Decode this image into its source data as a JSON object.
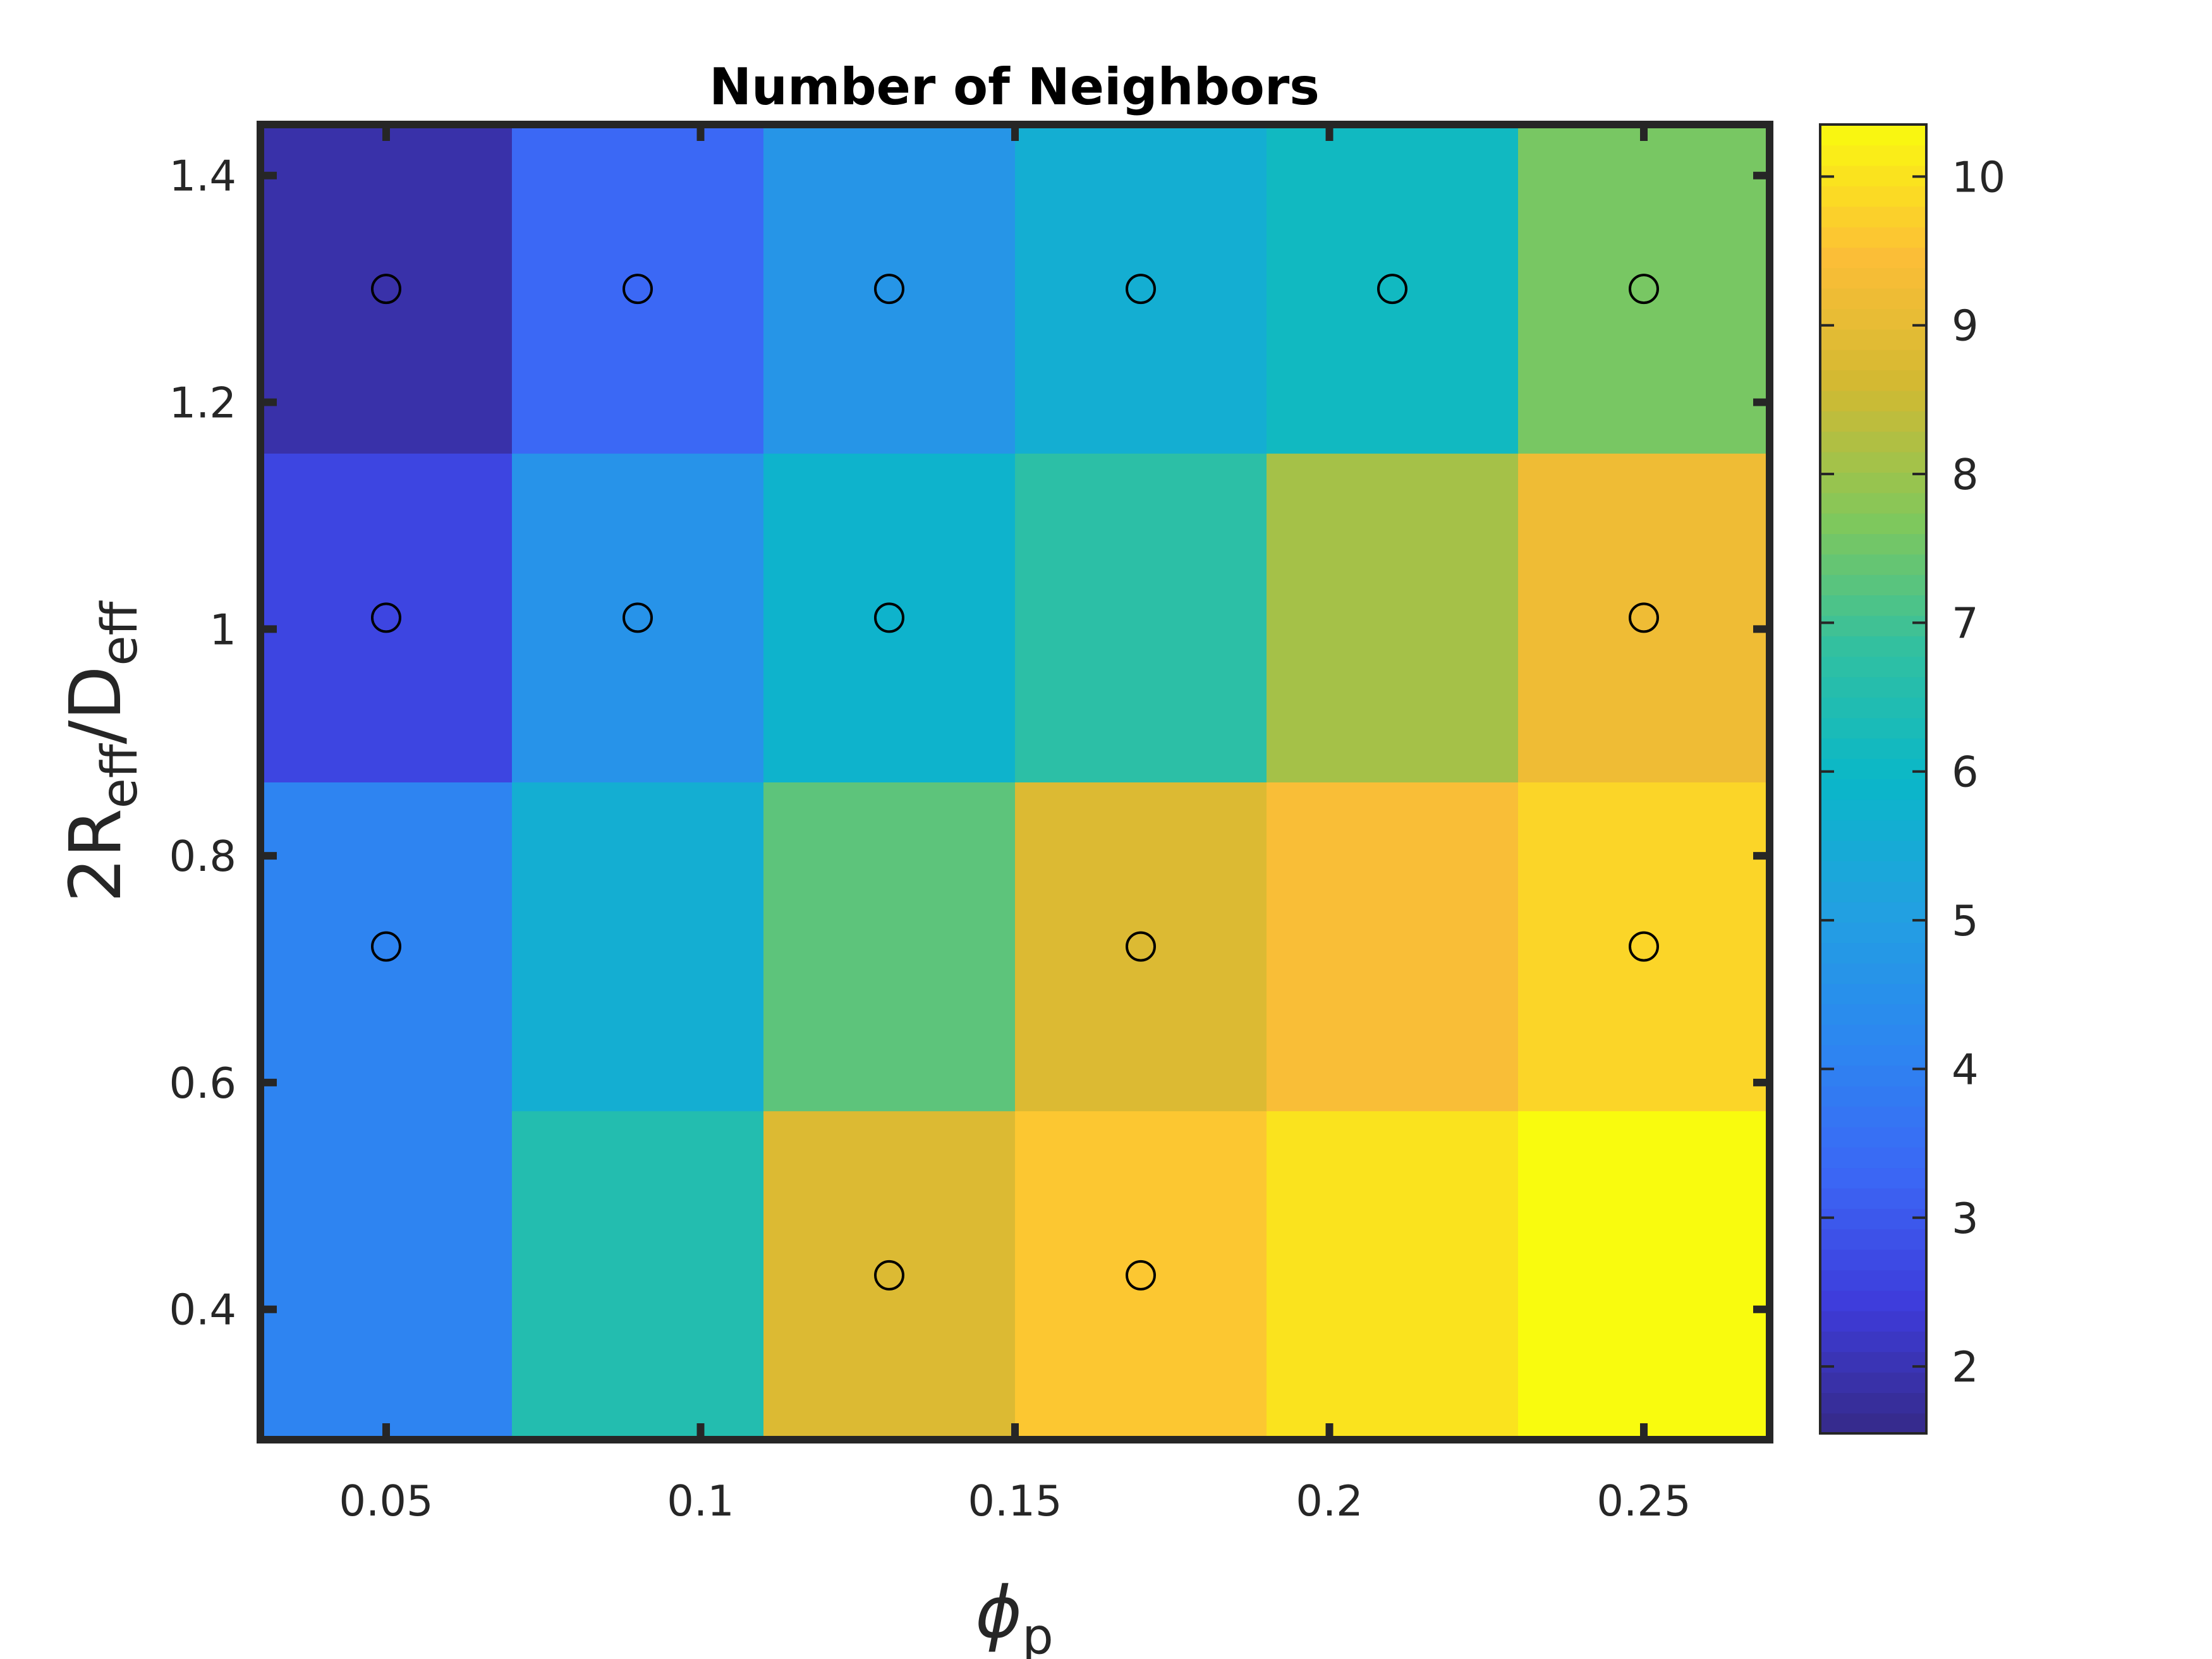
{
  "chart_data": {
    "type": "heatmap",
    "title": "Number of Neighbors",
    "xlabel": {
      "main": "ϕ",
      "sub": "p"
    },
    "ylabel": {
      "main1": "2R",
      "sub1": "eff",
      "main2": "/D",
      "sub2": "eff"
    },
    "x": [
      0.05,
      0.09,
      0.13,
      0.17,
      0.21,
      0.25
    ],
    "y": [
      0.43,
      0.72,
      1.01,
      1.3
    ],
    "values": [
      [
        4.1,
        6.5,
        8.8,
        9.6,
        10.0,
        10.4
      ],
      [
        4.1,
        5.6,
        7.3,
        8.8,
        9.4,
        9.8
      ],
      [
        2.6,
        4.6,
        5.8,
        6.7,
        8.1,
        9.2
      ],
      [
        1.9,
        3.3,
        4.7,
        5.6,
        6.1,
        7.6
      ]
    ],
    "markers": [
      {
        "x": 0.05,
        "y": 1.3
      },
      {
        "x": 0.09,
        "y": 1.3
      },
      {
        "x": 0.13,
        "y": 1.3
      },
      {
        "x": 0.17,
        "y": 1.3
      },
      {
        "x": 0.21,
        "y": 1.3
      },
      {
        "x": 0.25,
        "y": 1.3
      },
      {
        "x": 0.05,
        "y": 1.01
      },
      {
        "x": 0.09,
        "y": 1.01
      },
      {
        "x": 0.13,
        "y": 1.01
      },
      {
        "x": 0.25,
        "y": 1.01
      },
      {
        "x": 0.05,
        "y": 0.72
      },
      {
        "x": 0.17,
        "y": 0.72
      },
      {
        "x": 0.25,
        "y": 0.72
      },
      {
        "x": 0.13,
        "y": 0.43
      },
      {
        "x": 0.17,
        "y": 0.43
      }
    ],
    "xlim": [
      0.03,
      0.27
    ],
    "ylim": [
      0.285,
      1.445
    ],
    "xticks": [
      0.05,
      0.1,
      0.15,
      0.2,
      0.25
    ],
    "xtick_labels": [
      "0.05",
      "0.1",
      "0.15",
      "0.2",
      "0.25"
    ],
    "yticks": [
      0.4,
      0.6,
      0.8,
      1.0,
      1.2,
      1.4
    ],
    "ytick_labels": [
      "0.4",
      "0.6",
      "0.8",
      "1",
      "1.2",
      "1.4"
    ],
    "colorbar": {
      "range": [
        1.55,
        10.35
      ],
      "ticks": [
        2,
        3,
        4,
        5,
        6,
        7,
        8,
        9,
        10
      ],
      "tick_labels": [
        "2",
        "3",
        "4",
        "5",
        "6",
        "7",
        "8",
        "9",
        "10"
      ],
      "colormap": "parula"
    },
    "grid": false,
    "colors": {
      "axis": "#262626",
      "marker": "#000000"
    }
  }
}
